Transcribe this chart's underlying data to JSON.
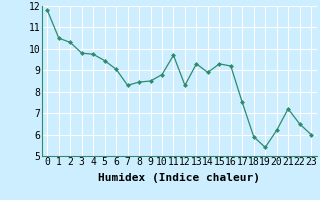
{
  "x": [
    0,
    1,
    2,
    3,
    4,
    5,
    6,
    7,
    8,
    9,
    10,
    11,
    12,
    13,
    14,
    15,
    16,
    17,
    18,
    19,
    20,
    21,
    22,
    23
  ],
  "y": [
    11.8,
    10.5,
    10.3,
    9.8,
    9.75,
    9.45,
    9.05,
    8.3,
    8.45,
    8.5,
    8.8,
    9.7,
    8.3,
    9.3,
    8.9,
    9.3,
    9.2,
    7.5,
    5.9,
    5.4,
    6.2,
    7.2,
    6.5,
    6.0
  ],
  "xlabel": "Humidex (Indice chaleur)",
  "ylim": [
    5,
    12
  ],
  "xlim": [
    -0.5,
    23.5
  ],
  "yticks": [
    5,
    6,
    7,
    8,
    9,
    10,
    11,
    12
  ],
  "xticks": [
    0,
    1,
    2,
    3,
    4,
    5,
    6,
    7,
    8,
    9,
    10,
    11,
    12,
    13,
    14,
    15,
    16,
    17,
    18,
    19,
    20,
    21,
    22,
    23
  ],
  "line_color": "#2e8b6e",
  "marker_color": "#2e8b6e",
  "bg_color": "#cceeff",
  "grid_color": "#ffffff",
  "tick_fontsize": 7,
  "xlabel_fontsize": 8
}
